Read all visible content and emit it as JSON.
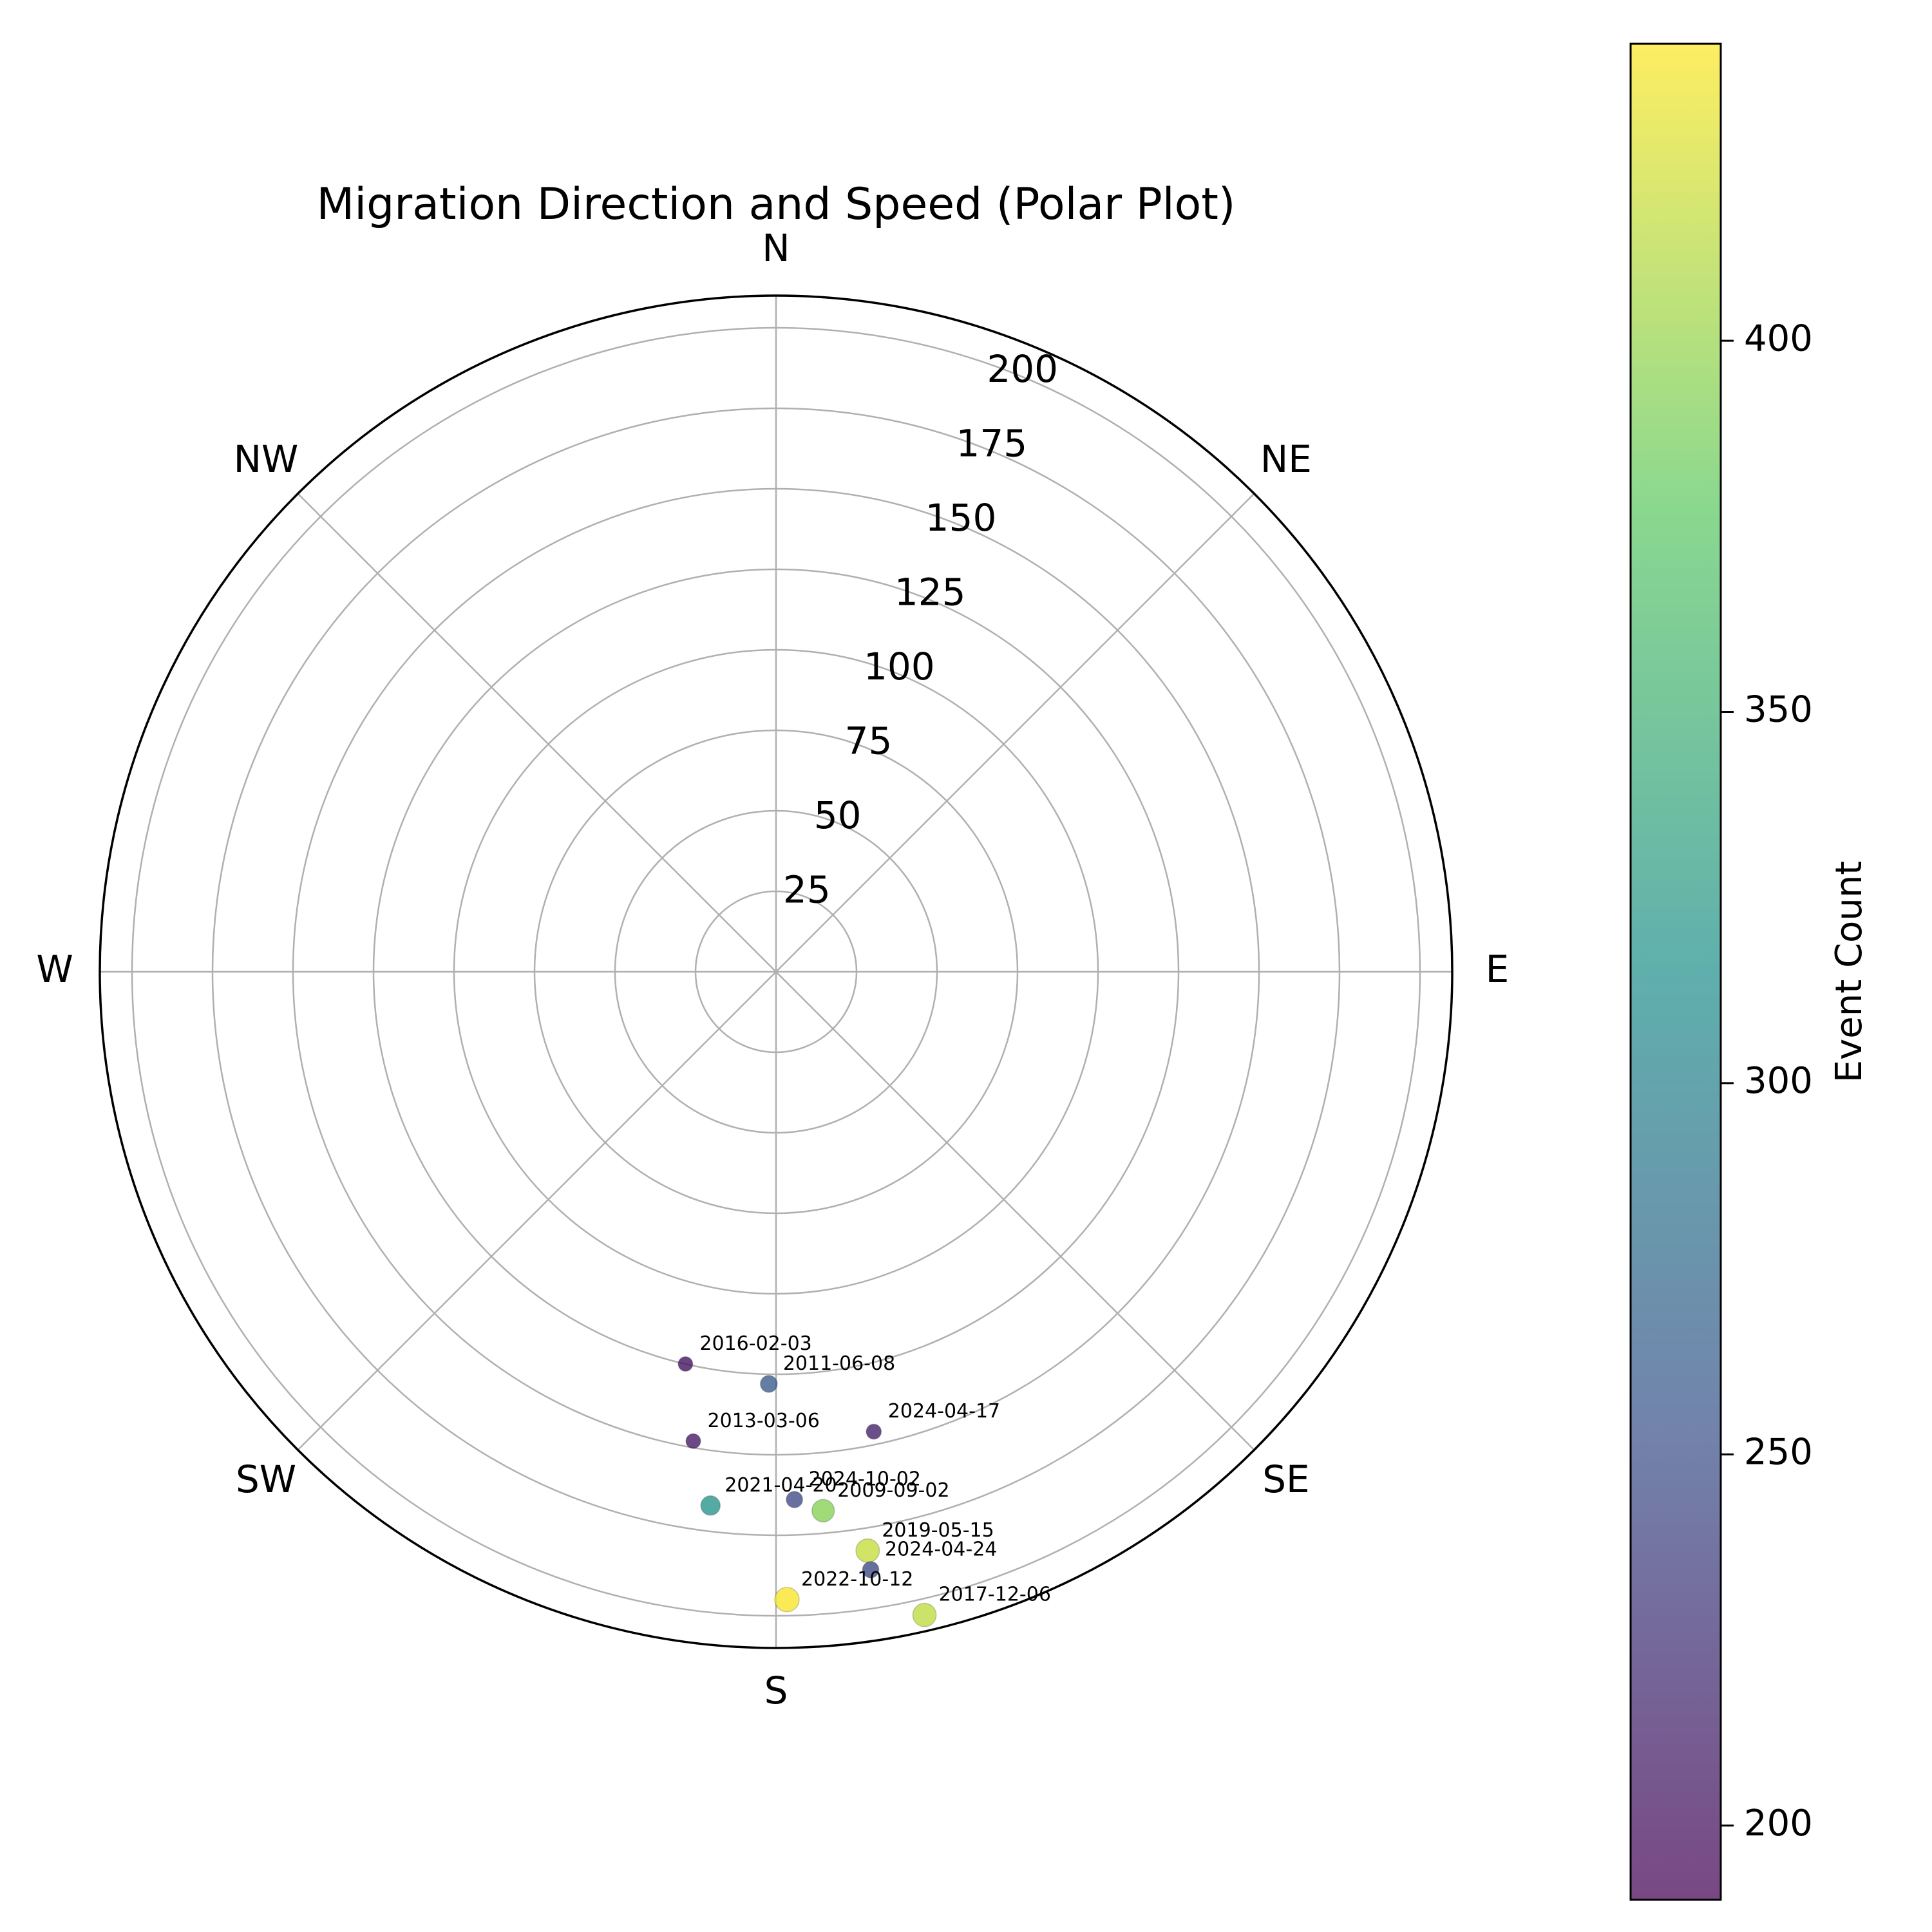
{
  "chart_data": {
    "type": "scatter",
    "projection": "polar",
    "title": "Migration Direction and Speed (Polar Plot)",
    "theta_zero": "N",
    "theta_direction": "clockwise",
    "direction_labels": [
      {
        "label": "N",
        "deg": 0
      },
      {
        "label": "NE",
        "deg": 45
      },
      {
        "label": "E",
        "deg": 90
      },
      {
        "label": "SE",
        "deg": 135
      },
      {
        "label": "S",
        "deg": 180
      },
      {
        "label": "SW",
        "deg": 225
      },
      {
        "label": "W",
        "deg": 270
      },
      {
        "label": "NW",
        "deg": 315
      }
    ],
    "radial_ticks": [
      25,
      50,
      75,
      100,
      125,
      150,
      175,
      200
    ],
    "rlim": [
      0,
      210
    ],
    "grid": true,
    "colorbar": {
      "label": "Event Count",
      "range": [
        190,
        440
      ],
      "ticks": [
        200,
        250,
        300,
        350,
        400
      ],
      "colormap": "viridis"
    },
    "points": [
      {
        "label": "2016-02-03",
        "direction_deg": 193,
        "speed": 125,
        "event_count": 200
      },
      {
        "label": "2011-06-08",
        "direction_deg": 181,
        "speed": 128,
        "event_count": 258
      },
      {
        "label": "2024-04-17",
        "direction_deg": 168,
        "speed": 146,
        "event_count": 212
      },
      {
        "label": "2013-03-06",
        "direction_deg": 190,
        "speed": 148,
        "event_count": 205
      },
      {
        "label": "2024-10-02",
        "direction_deg": 178,
        "speed": 164,
        "event_count": 245
      },
      {
        "label": "2009-09-02",
        "direction_deg": 175,
        "speed": 168,
        "event_count": 393
      },
      {
        "label": "2021-04-20",
        "direction_deg": 187,
        "speed": 167,
        "event_count": 318
      },
      {
        "label": "2019-05-15",
        "direction_deg": 171,
        "speed": 182,
        "event_count": 418
      },
      {
        "label": "2024-04-24",
        "direction_deg": 171,
        "speed": 188,
        "event_count": 244
      },
      {
        "label": "2022-10-12",
        "direction_deg": 179,
        "speed": 195,
        "event_count": 438
      },
      {
        "label": "2017-12-06",
        "direction_deg": 167,
        "speed": 205,
        "event_count": 415
      }
    ]
  }
}
